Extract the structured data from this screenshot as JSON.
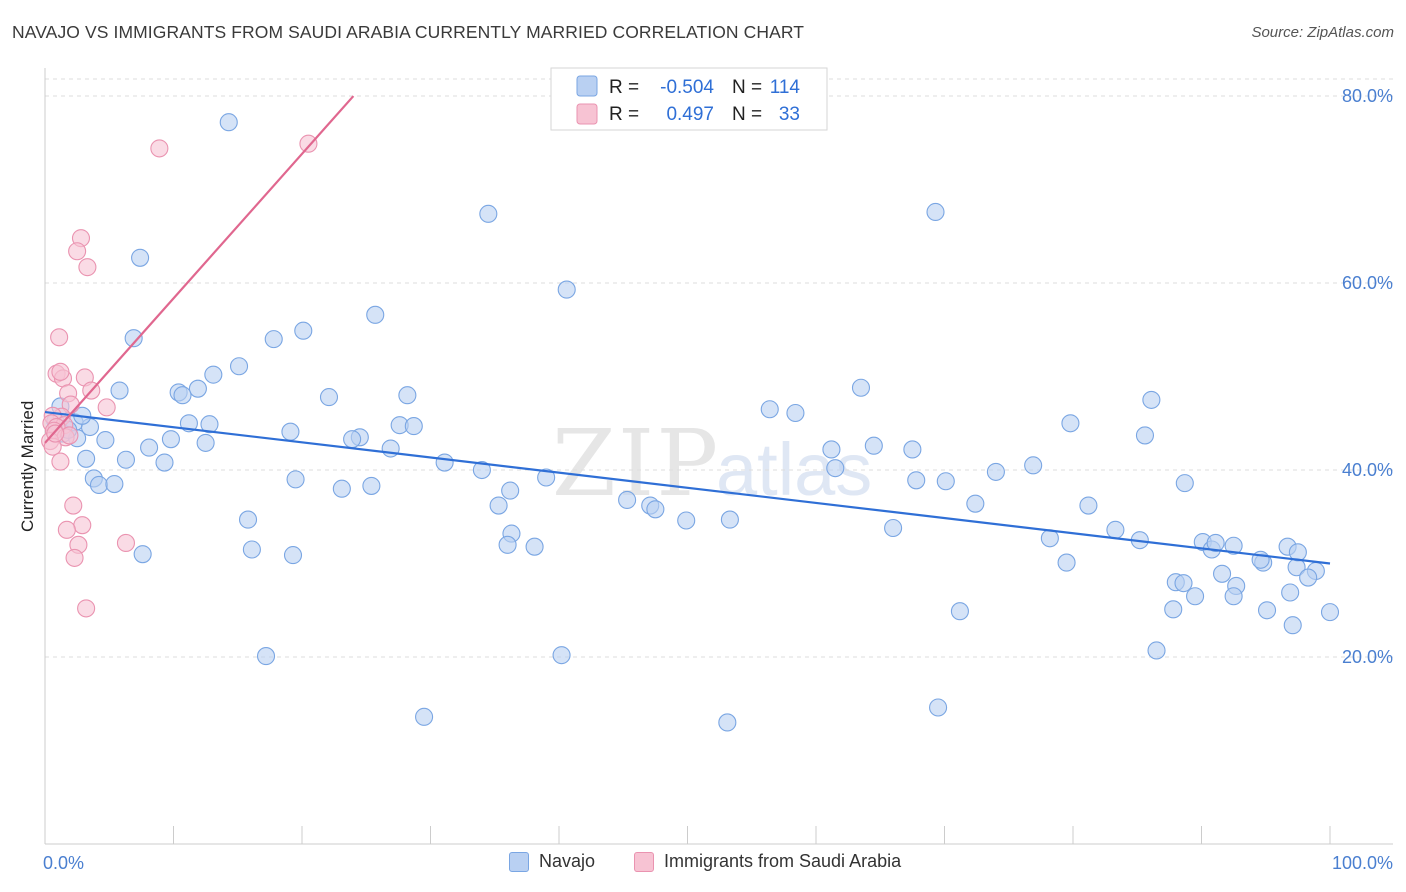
{
  "title": "NAVAJO VS IMMIGRANTS FROM SAUDI ARABIA CURRENTLY MARRIED CORRELATION CHART",
  "source": "Source: ZipAtlas.com",
  "watermark": {
    "zip": "ZIP",
    "atlas": "atlas"
  },
  "legend": {
    "row1": {
      "r_label": "R =",
      "r_value": "-0.504",
      "n_label": "N =",
      "n_value": "114"
    },
    "row2": {
      "r_label": "R =",
      "r_value": "0.497",
      "n_label": "N =",
      "n_value": "33"
    }
  },
  "bottom_legend": {
    "navajo": "Navajo",
    "saudi": "Immigrants from Saudi Arabia"
  },
  "colors": {
    "navajo_fill": "#b9d0f2",
    "navajo_stroke": "#7aa6e3",
    "navajo_line": "#2f6fd6",
    "saudi_fill": "#f7c3d3",
    "saudi_stroke": "#ea93b0",
    "saudi_line": "#e0678f",
    "grid": "#dddddd",
    "tick_label": "#4a7fd0"
  },
  "chart_data": {
    "type": "scatter",
    "title": "NAVAJO VS IMMIGRANTS FROM SAUDI ARABIA CURRENTLY MARRIED CORRELATION CHART",
    "xlabel": "",
    "ylabel": "Currently Married",
    "xlim": [
      0,
      100
    ],
    "ylim": [
      0,
      83
    ],
    "y_ticks": [
      20,
      40,
      60,
      80
    ],
    "y_tick_labels": [
      "20.0%",
      "40.0%",
      "60.0%",
      "80.0%"
    ],
    "x_tick_labels": [
      "0.0%",
      "100.0%"
    ],
    "grid": true,
    "legend_position": "top-center",
    "series": [
      {
        "name": "Navajo",
        "r": -0.504,
        "n": 114,
        "trend": {
          "x": [
            0,
            100
          ],
          "y": [
            46.2,
            30.0
          ]
        },
        "points": [
          [
            14.3,
            77.2
          ],
          [
            34.5,
            67.4
          ],
          [
            69.3,
            67.6
          ],
          [
            7.4,
            62.7
          ],
          [
            40.6,
            59.3
          ],
          [
            25.7,
            56.6
          ],
          [
            20.1,
            54.9
          ],
          [
            6.9,
            54.1
          ],
          [
            17.8,
            54.0
          ],
          [
            15.1,
            51.1
          ],
          [
            13.1,
            50.2
          ],
          [
            63.5,
            48.8
          ],
          [
            11.9,
            48.7
          ],
          [
            10.4,
            48.3
          ],
          [
            10.7,
            48.0
          ],
          [
            5.8,
            48.5
          ],
          [
            22.1,
            47.8
          ],
          [
            28.2,
            48.0
          ],
          [
            56.4,
            46.5
          ],
          [
            58.4,
            46.1
          ],
          [
            86.1,
            47.5
          ],
          [
            1.2,
            46.8
          ],
          [
            2.3,
            45.1
          ],
          [
            11.2,
            45.0
          ],
          [
            12.8,
            44.9
          ],
          [
            27.6,
            44.8
          ],
          [
            28.7,
            44.7
          ],
          [
            19.1,
            44.1
          ],
          [
            79.8,
            45.0
          ],
          [
            1.4,
            43.9
          ],
          [
            2.5,
            43.4
          ],
          [
            9.8,
            43.3
          ],
          [
            12.5,
            42.9
          ],
          [
            24.5,
            43.5
          ],
          [
            23.9,
            43.3
          ],
          [
            26.9,
            42.3
          ],
          [
            61.2,
            42.2
          ],
          [
            64.5,
            42.6
          ],
          [
            67.5,
            42.2
          ],
          [
            85.6,
            43.7
          ],
          [
            3.2,
            41.2
          ],
          [
            6.3,
            41.1
          ],
          [
            8.1,
            42.4
          ],
          [
            9.3,
            40.8
          ],
          [
            31.1,
            40.8
          ],
          [
            34.0,
            40.0
          ],
          [
            61.5,
            40.2
          ],
          [
            74.0,
            39.8
          ],
          [
            76.9,
            40.5
          ],
          [
            3.8,
            39.1
          ],
          [
            4.2,
            38.4
          ],
          [
            5.4,
            38.5
          ],
          [
            19.5,
            39.0
          ],
          [
            23.1,
            38.0
          ],
          [
            25.4,
            38.3
          ],
          [
            36.2,
            37.8
          ],
          [
            39.0,
            39.2
          ],
          [
            67.8,
            38.9
          ],
          [
            70.1,
            38.8
          ],
          [
            35.3,
            36.2
          ],
          [
            45.3,
            36.8
          ],
          [
            47.1,
            36.2
          ],
          [
            47.5,
            35.8
          ],
          [
            72.4,
            36.4
          ],
          [
            81.2,
            36.2
          ],
          [
            88.7,
            38.6
          ],
          [
            15.8,
            34.7
          ],
          [
            36.3,
            33.2
          ],
          [
            49.9,
            34.6
          ],
          [
            53.3,
            34.7
          ],
          [
            66.0,
            33.8
          ],
          [
            83.3,
            33.6
          ],
          [
            78.2,
            32.7
          ],
          [
            85.2,
            32.5
          ],
          [
            7.6,
            31.0
          ],
          [
            16.1,
            31.5
          ],
          [
            19.3,
            30.9
          ],
          [
            36.0,
            32.0
          ],
          [
            38.1,
            31.8
          ],
          [
            79.5,
            30.1
          ],
          [
            90.1,
            32.3
          ],
          [
            90.8,
            31.5
          ],
          [
            92.5,
            31.9
          ],
          [
            94.8,
            30.1
          ],
          [
            97.4,
            29.6
          ],
          [
            98.9,
            29.2
          ],
          [
            91.1,
            32.2
          ],
          [
            96.7,
            31.8
          ],
          [
            94.6,
            30.4
          ],
          [
            98.3,
            28.5
          ],
          [
            97.5,
            31.2
          ],
          [
            91.6,
            28.9
          ],
          [
            88.0,
            28.0
          ],
          [
            88.6,
            27.9
          ],
          [
            92.7,
            27.6
          ],
          [
            96.9,
            26.9
          ],
          [
            89.5,
            26.5
          ],
          [
            92.5,
            26.5
          ],
          [
            95.1,
            25.0
          ],
          [
            100.0,
            24.8
          ],
          [
            71.2,
            24.9
          ],
          [
            87.8,
            25.1
          ],
          [
            97.1,
            23.4
          ],
          [
            86.5,
            20.7
          ],
          [
            17.2,
            20.1
          ],
          [
            40.2,
            20.2
          ],
          [
            69.5,
            14.6
          ],
          [
            29.5,
            13.6
          ],
          [
            53.1,
            13.0
          ],
          [
            4.7,
            43.2
          ],
          [
            1.8,
            44.3
          ],
          [
            3.5,
            44.6
          ],
          [
            0.8,
            45.2
          ],
          [
            2.9,
            45.8
          ]
        ]
      },
      {
        "name": "Immigrants from Saudi Arabia",
        "r": 0.497,
        "n": 33,
        "trend": {
          "x": [
            0,
            24.0
          ],
          "y": [
            42.9,
            80.0
          ]
        },
        "points": [
          [
            8.9,
            74.4
          ],
          [
            20.5,
            74.9
          ],
          [
            2.8,
            64.8
          ],
          [
            2.5,
            63.4
          ],
          [
            3.3,
            61.7
          ],
          [
            1.1,
            54.2
          ],
          [
            0.9,
            50.3
          ],
          [
            1.4,
            49.8
          ],
          [
            1.2,
            50.5
          ],
          [
            3.1,
            49.9
          ],
          [
            3.6,
            48.5
          ],
          [
            1.8,
            48.2
          ],
          [
            4.8,
            46.7
          ],
          [
            2.0,
            47.0
          ],
          [
            1.3,
            45.7
          ],
          [
            0.6,
            45.8
          ],
          [
            0.5,
            45.0
          ],
          [
            1.5,
            44.8
          ],
          [
            0.9,
            44.6
          ],
          [
            0.7,
            44.2
          ],
          [
            1.6,
            43.5
          ],
          [
            0.4,
            43.1
          ],
          [
            1.9,
            43.7
          ],
          [
            0.6,
            42.5
          ],
          [
            1.2,
            40.9
          ],
          [
            2.2,
            36.2
          ],
          [
            2.9,
            34.1
          ],
          [
            1.7,
            33.6
          ],
          [
            2.6,
            32.0
          ],
          [
            6.3,
            32.2
          ],
          [
            2.3,
            30.6
          ],
          [
            3.2,
            25.2
          ],
          [
            0.8,
            43.9
          ]
        ]
      }
    ]
  }
}
